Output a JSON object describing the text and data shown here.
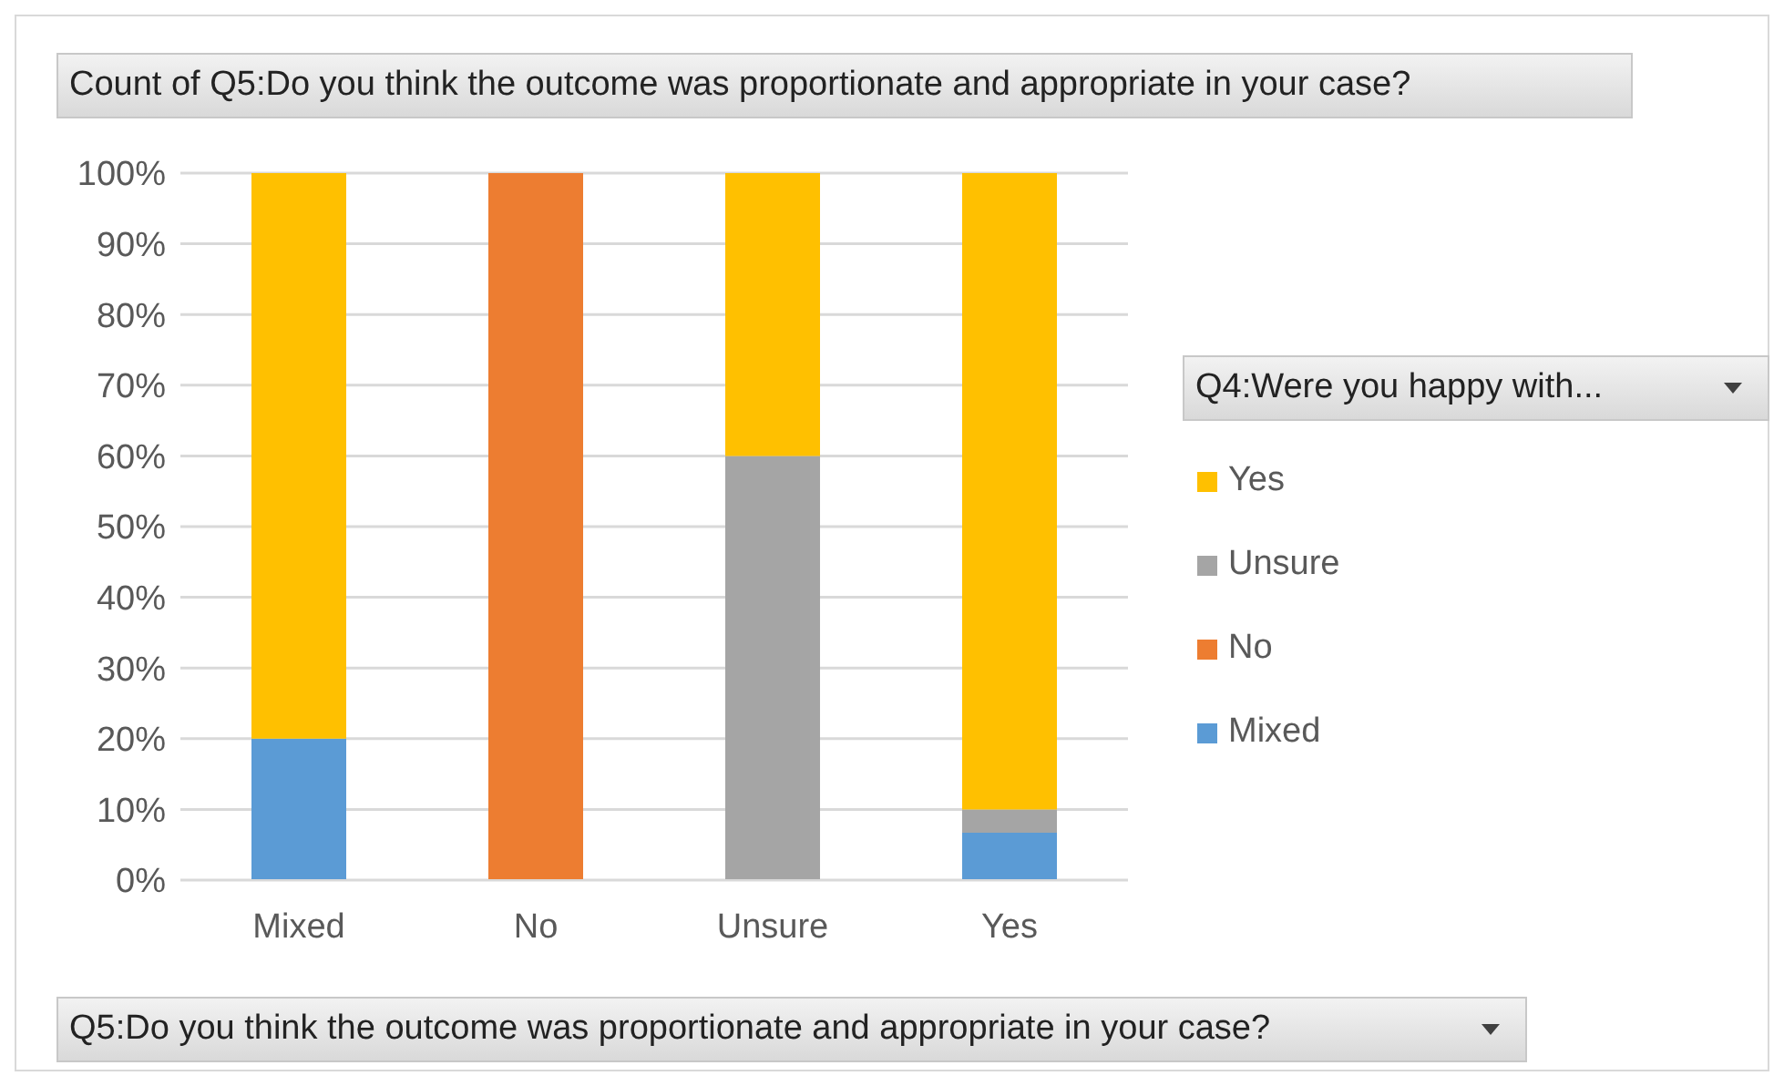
{
  "chart_data": {
    "type": "bar",
    "stacked": true,
    "title": "Count of Q5:Do you think the outcome was proportionate and appropriate in your case?",
    "xlabel": "Q5:Do you think the outcome was proportionate and appropriate in your case?",
    "legend_title": "Q4:Were you happy with...",
    "categories": [
      "Mixed",
      "No",
      "Unsure",
      "Yes"
    ],
    "series": [
      {
        "name": "Mixed",
        "color": "#5b9bd5",
        "values": [
          20,
          0,
          0,
          6.7
        ]
      },
      {
        "name": "No",
        "color": "#ed7d31",
        "values": [
          0,
          100,
          0,
          0
        ]
      },
      {
        "name": "Unsure",
        "color": "#a5a5a5",
        "values": [
          0,
          0,
          60,
          3.3
        ]
      },
      {
        "name": "Yes",
        "color": "#ffc000",
        "values": [
          80,
          0,
          40,
          90
        ]
      }
    ],
    "ylim": [
      0,
      100
    ],
    "yticks": [
      {
        "value": 0,
        "label": "0%"
      },
      {
        "value": 10,
        "label": "10%"
      },
      {
        "value": 20,
        "label": "20%"
      },
      {
        "value": 30,
        "label": "30%"
      },
      {
        "value": 40,
        "label": "40%"
      },
      {
        "value": 50,
        "label": "50%"
      },
      {
        "value": 60,
        "label": "60%"
      },
      {
        "value": 70,
        "label": "70%"
      },
      {
        "value": 80,
        "label": "80%"
      },
      {
        "value": 90,
        "label": "90%"
      },
      {
        "value": 100,
        "label": "100%"
      }
    ],
    "grid": "y",
    "legend": "right"
  }
}
